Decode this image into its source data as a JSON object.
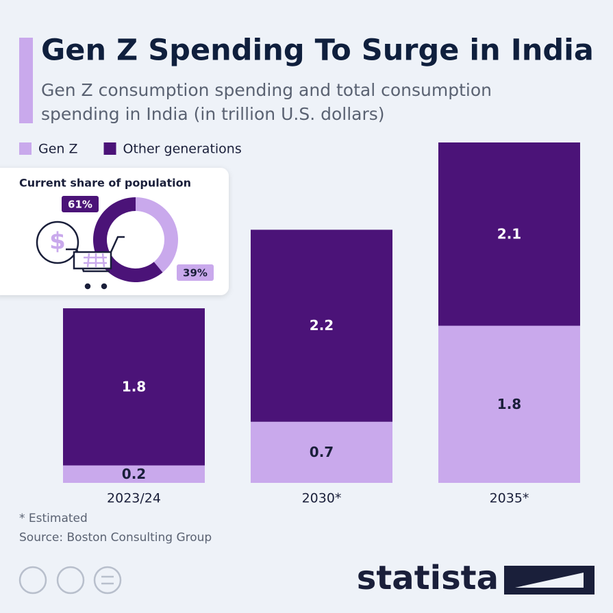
{
  "chart_data": {
    "type": "stacked-bar",
    "title": "Gen Z Spending To Surge in India",
    "subtitle": [
      "Gen Z consumption spending and total consumption",
      "spending in India (in trillion U.S. dollars)"
    ],
    "categories": [
      "2023/24",
      "2030*",
      "2035*"
    ],
    "series": [
      {
        "name": "Gen Z",
        "color": "#c9a9ec",
        "label_color": "#1a1f3a",
        "values": [
          0.2,
          0.7,
          1.8
        ]
      },
      {
        "name": "Other generations",
        "color": "#4b1378",
        "label_color": "#ffffff",
        "values": [
          1.8,
          2.2,
          2.1
        ]
      }
    ],
    "inset": {
      "type": "donut",
      "title": "Current share of population",
      "values": [
        39,
        61
      ],
      "value_labels": [
        "39%",
        "61%"
      ],
      "colors": [
        "#c9a9ec",
        "#4b1378"
      ]
    },
    "note": "* Estimated",
    "source": "Source: Boston Consulting Group",
    "brand": "statista"
  }
}
